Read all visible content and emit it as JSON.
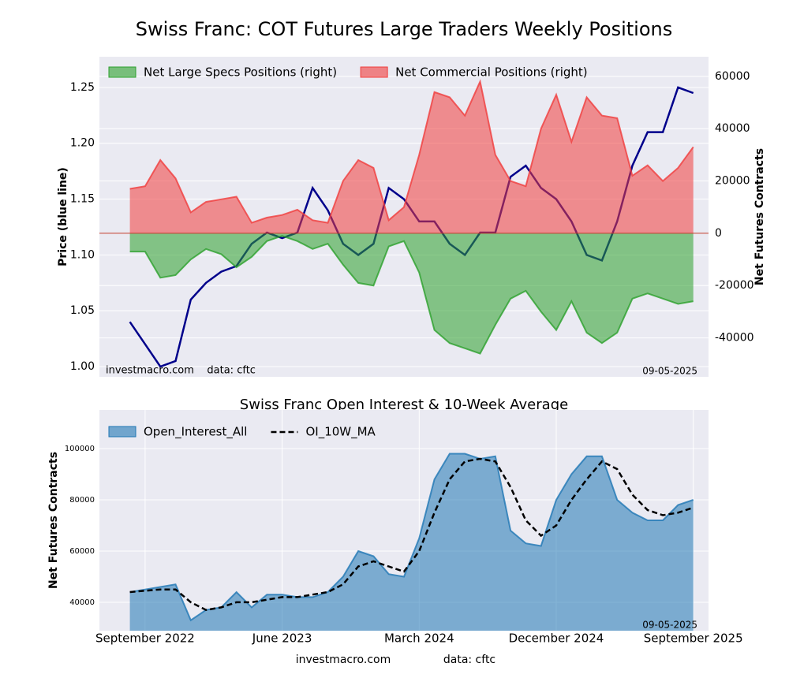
{
  "chart_data": [
    {
      "type": "line",
      "title": "Swiss Franc: COT Futures Large Traders Weekly Positions",
      "ylabel": "Price (blue line)",
      "y2label": "Net Futures Contracts",
      "watermark": "investmacro.com    data: cftc",
      "date": "09-05-2025",
      "x": [
        "2022-08",
        "2022-09",
        "2022-10",
        "2022-11",
        "2022-12",
        "2023-01",
        "2023-02",
        "2023-03",
        "2023-04",
        "2023-05",
        "2023-06",
        "2023-07",
        "2023-08",
        "2023-09",
        "2023-10",
        "2023-11",
        "2023-12",
        "2024-01",
        "2024-02",
        "2024-03",
        "2024-04",
        "2024-05",
        "2024-06",
        "2024-07",
        "2024-08",
        "2024-09",
        "2024-10",
        "2024-11",
        "2024-12",
        "2025-01",
        "2025-02",
        "2025-03",
        "2025-04",
        "2025-05",
        "2025-06",
        "2025-07",
        "2025-08",
        "2025-09"
      ],
      "xlim": [
        "2022-06",
        "2025-10"
      ],
      "ylim": [
        0.9908,
        1.2775
      ],
      "yticks": [
        {
          "value": 1,
          "label": "1.00"
        },
        1.05,
        {
          "value": 1.1,
          "label": "1.10"
        },
        1.15,
        {
          "value": 1.2,
          "label": "1.20"
        },
        1.25
      ],
      "y2lim": [
        -54900,
        67500
      ],
      "y2ticks": [
        -40000,
        -20000,
        0,
        20000,
        40000,
        60000
      ],
      "series": [
        {
          "name": "Net Large Specs Positions (right)",
          "type": "area",
          "axis": "y2",
          "color": "#2ca02c",
          "values": [
            -7000,
            -7000,
            -17000,
            -16000,
            -10000,
            -6000,
            -8000,
            -13000,
            -9000,
            -3000,
            -1000,
            -3000,
            -6000,
            -4000,
            -12000,
            -19000,
            -20000,
            -5000,
            -3000,
            -15000,
            -37000,
            -42000,
            -44000,
            -46000,
            -35000,
            -25000,
            -22000,
            -30000,
            -37000,
            -26000,
            -38000,
            -42000,
            -38000,
            -25000,
            -23000,
            -25000,
            -27000,
            -26000
          ]
        },
        {
          "name": "Net Commercial Positions (right)",
          "type": "area",
          "axis": "y2",
          "color": "#f03c3c",
          "values": [
            17000,
            18000,
            28000,
            21000,
            8000,
            12000,
            13000,
            14000,
            4000,
            6000,
            7000,
            9000,
            5000,
            4000,
            20000,
            28000,
            25000,
            5000,
            10000,
            30000,
            54000,
            52000,
            45000,
            58000,
            30000,
            20000,
            18000,
            40000,
            53000,
            35000,
            52000,
            45000,
            44000,
            22000,
            26000,
            20000,
            25000,
            33000
          ]
        },
        {
          "type": "line",
          "color": "#00008b",
          "values": [
            1.04,
            1.02,
            1.0,
            1.005,
            1.06,
            1.075,
            1.085,
            1.09,
            1.11,
            1.12,
            1.115,
            1.12,
            1.16,
            1.14,
            1.11,
            1.1,
            1.11,
            1.16,
            1.15,
            1.13,
            1.13,
            1.11,
            1.1,
            1.12,
            1.12,
            1.17,
            1.18,
            1.16,
            1.15,
            1.13,
            1.1,
            1.095,
            1.13,
            1.18,
            1.21,
            1.21,
            1.25,
            1.245
          ]
        }
      ]
    },
    {
      "type": "area",
      "title": "Swiss Franc Open Interest & 10-Week Average",
      "ylabel": "Net Futures Contracts",
      "date": "09-05-2025",
      "x": [
        "2022-08",
        "2022-09",
        "2022-10",
        "2022-11",
        "2022-12",
        "2023-01",
        "2023-02",
        "2023-03",
        "2023-04",
        "2023-05",
        "2023-06",
        "2023-07",
        "2023-08",
        "2023-09",
        "2023-10",
        "2023-11",
        "2023-12",
        "2024-01",
        "2024-02",
        "2024-03",
        "2024-04",
        "2024-05",
        "2024-06",
        "2024-07",
        "2024-08",
        "2024-09",
        "2024-10",
        "2024-11",
        "2024-12",
        "2025-01",
        "2025-02",
        "2025-03",
        "2025-04",
        "2025-05",
        "2025-06",
        "2025-07",
        "2025-08",
        "2025-09"
      ],
      "xlim": [
        "2022-06",
        "2025-10"
      ],
      "xticks": [
        {
          "value": "2022-09",
          "label": "September 2022"
        },
        {
          "value": "2023-06",
          "label": "June 2023"
        },
        {
          "value": "2024-03",
          "label": "March 2024"
        },
        {
          "value": "2024-12",
          "label": "December 2024"
        },
        {
          "value": "2025-09",
          "label": "September 2025"
        }
      ],
      "ylim": [
        28900,
        115100
      ],
      "yticks": [
        40000,
        60000,
        80000,
        100000
      ],
      "series": [
        {
          "name": "Open_Interest_All",
          "type": "area",
          "color": "#1f77b4",
          "values": [
            44000,
            45000,
            46000,
            47000,
            33000,
            37000,
            38000,
            44000,
            38000,
            43000,
            43000,
            42000,
            42000,
            44000,
            50000,
            60000,
            58000,
            51000,
            50000,
            65000,
            88000,
            98000,
            98000,
            96000,
            97000,
            68000,
            63000,
            62000,
            80000,
            90000,
            97000,
            97000,
            80000,
            75000,
            72000,
            72000,
            78000,
            80000
          ]
        },
        {
          "name": "OI_10W_MA",
          "type": "line",
          "linestyle": "dashed",
          "color": "#000000",
          "values": [
            44000,
            44500,
            45000,
            45000,
            40000,
            37000,
            38000,
            40000,
            40000,
            41000,
            42000,
            42000,
            43000,
            44000,
            47000,
            54000,
            56000,
            54000,
            52000,
            60000,
            75000,
            88000,
            95000,
            96000,
            95000,
            85000,
            72000,
            66000,
            70000,
            80000,
            88000,
            95000,
            92000,
            82000,
            76000,
            74000,
            75000,
            77000
          ]
        }
      ]
    }
  ],
  "footer": {
    "site": "investmacro.com",
    "source": "data: cftc"
  }
}
